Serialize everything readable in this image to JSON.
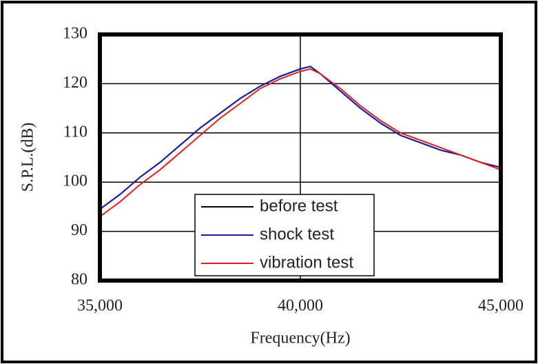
{
  "chart_data": {
    "type": "line",
    "x_label": "Frequency(Hz)",
    "y_label": "S.P.L.(dB)",
    "x": [
      35000,
      35500,
      36000,
      36500,
      37000,
      37500,
      38000,
      38500,
      39000,
      39500,
      40000,
      40250,
      40500,
      41000,
      41500,
      42000,
      42500,
      43000,
      43500,
      44000,
      44500,
      45000
    ],
    "series": [
      {
        "name": "before test",
        "color": "#000000",
        "values": [
          94.5,
          97.5,
          101,
          104,
          107.5,
          111,
          114,
          117,
          119.5,
          121.5,
          123,
          123.5,
          122,
          118.5,
          115,
          112,
          109.5,
          108,
          106.5,
          105.5,
          104,
          103
        ]
      },
      {
        "name": "shock test",
        "color": "#1a1aa0",
        "values": [
          94.5,
          97.5,
          101,
          104,
          107.5,
          111,
          114,
          117,
          119.5,
          121.5,
          123,
          123.5,
          122,
          118.5,
          115,
          112,
          109.5,
          108,
          106.5,
          105.5,
          104,
          103
        ]
      },
      {
        "name": "vibration test",
        "color": "#e02020",
        "values": [
          93,
          96,
          99.5,
          102.5,
          106,
          109.5,
          113,
          116,
          119,
          121,
          122.5,
          123,
          122,
          119,
          115.5,
          112.5,
          110,
          108.5,
          107,
          105.5,
          104,
          102.5
        ]
      }
    ],
    "xlim": [
      35000,
      45000
    ],
    "xticks": [
      {
        "value": 35000,
        "label": "35,000"
      },
      {
        "value": 40000,
        "label": "40,000"
      },
      {
        "value": 45000,
        "label": "45,000"
      }
    ],
    "ylim": [
      80,
      130
    ],
    "yticks": [
      80,
      90,
      100,
      110,
      120,
      130
    ],
    "grid": true
  }
}
